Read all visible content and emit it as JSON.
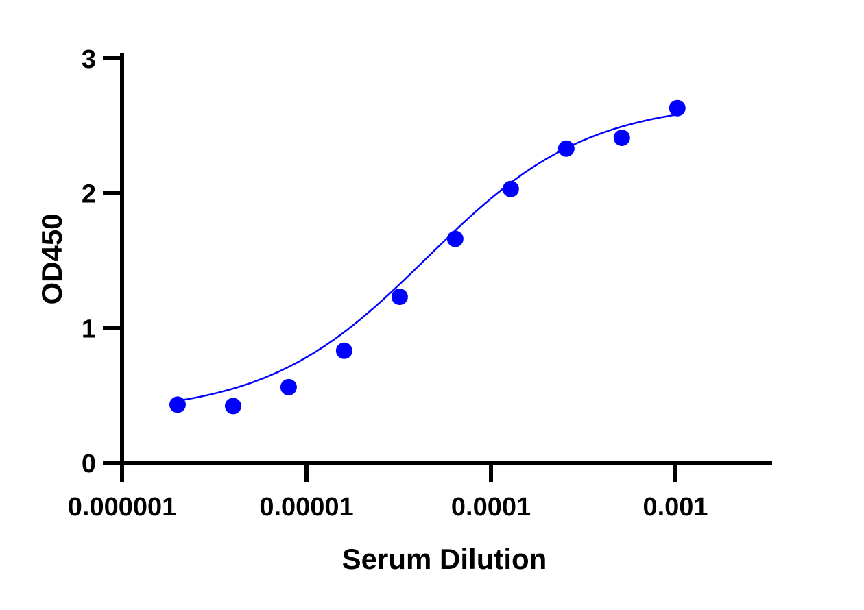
{
  "chart_data": {
    "type": "scatter",
    "xlabel": "Serum Dilution",
    "ylabel": "OD450",
    "x_scale": "log",
    "xlim": [
      1e-06,
      0.003
    ],
    "ylim": [
      0,
      3
    ],
    "x_ticks": [
      1e-06,
      1e-05,
      0.0001,
      0.001
    ],
    "x_tick_labels": [
      "0.000001",
      "0.00001",
      "0.0001",
      "0.001"
    ],
    "y_ticks": [
      0,
      1,
      2,
      3
    ],
    "y_tick_labels": [
      "0",
      "1",
      "2",
      "3"
    ],
    "grid": false,
    "legend": false,
    "series": [
      {
        "color": "#0000ff",
        "x": [
          2e-06,
          4e-06,
          8e-06,
          1.6e-05,
          3.2e-05,
          6.4e-05,
          0.000128,
          0.000256,
          0.000512,
          0.001024
        ],
        "y": [
          0.43,
          0.42,
          0.56,
          0.83,
          1.23,
          1.66,
          2.03,
          2.33,
          2.41,
          2.63
        ]
      }
    ],
    "fit_curve": {
      "type": "4PL sigmoid",
      "color": "#0000ff",
      "bottom": 0.36,
      "top": 2.68,
      "ec50": 4.5e-05,
      "hill_slope": 1.0
    }
  }
}
